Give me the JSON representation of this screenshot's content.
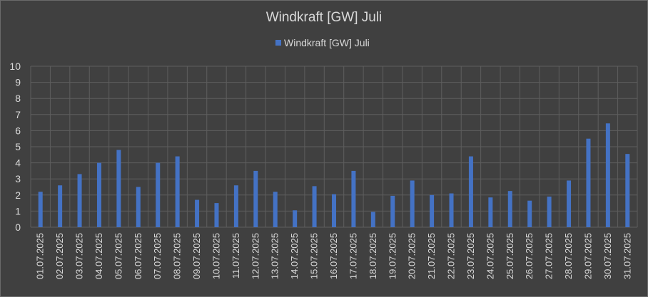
{
  "chart_data": {
    "type": "bar",
    "title": "Windkraft  [GW] Juli",
    "legend": {
      "position": "top",
      "entries": [
        "Windkraft  [GW] Juli"
      ]
    },
    "xlabel": "",
    "ylabel": "",
    "ylim": [
      0,
      10
    ],
    "yticks": [
      "0",
      "1",
      "2",
      "3",
      "4",
      "5",
      "6",
      "7",
      "8",
      "9",
      "10"
    ],
    "grid": true,
    "colors": {
      "background": "#404040",
      "bar": "#4472c4",
      "grid": "#5e5e5e",
      "text": "#d9d9d9"
    },
    "categories": [
      "01.07.2025",
      "02.07.2025",
      "03.07.2025",
      "04.07.2025",
      "05.07.2025",
      "06.07.2025",
      "07.07.2025",
      "08.07.2025",
      "09.07.2025",
      "10.07.2025",
      "11.07.2025",
      "12.07.2025",
      "13.07.2025",
      "14.07.2025",
      "15.07.2025",
      "16.07.2025",
      "17.07.2025",
      "18.07.2025",
      "19.07.2025",
      "20.07.2025",
      "21.07.2025",
      "22.07.2025",
      "23.07.2025",
      "24.07.2025",
      "25.07.2025",
      "26.07.2025",
      "27.07.2025",
      "28.07.2025",
      "29.07.2025",
      "30.07.2025",
      "31.07.2025"
    ],
    "series": [
      {
        "name": "Windkraft  [GW] Juli",
        "values": [
          2.2,
          2.6,
          3.3,
          4.0,
          4.8,
          2.5,
          4.0,
          4.4,
          1.7,
          1.5,
          2.6,
          3.5,
          2.2,
          1.05,
          2.55,
          2.05,
          3.5,
          0.95,
          1.95,
          2.9,
          2.0,
          2.1,
          4.4,
          1.85,
          2.25,
          1.65,
          1.9,
          2.9,
          5.5,
          6.45,
          4.55
        ]
      }
    ]
  }
}
